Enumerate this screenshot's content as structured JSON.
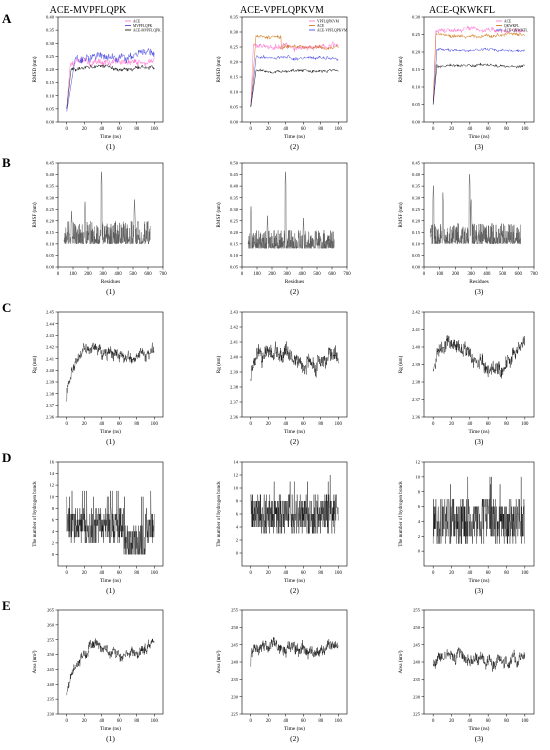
{
  "figure": {
    "panel_titles": [
      "ACE-MVPFLQPK",
      "ACE-VPFLQPKVM",
      "ACE-QKWKFL"
    ],
    "row_letters": [
      "A",
      "B",
      "C",
      "D",
      "E"
    ],
    "sub_labels": [
      "(1)",
      "(2)",
      "(3)"
    ]
  },
  "chart_data": [
    {
      "row": "A",
      "col": 1,
      "type": "line",
      "xlabel": "Time (ns)",
      "ylabel": "RMSD (nm)",
      "xlim": [
        -10,
        110
      ],
      "ylim": [
        0.0,
        0.4
      ],
      "xticks": [
        0,
        20,
        40,
        60,
        80,
        100
      ],
      "yticks": [
        0.0,
        0.05,
        0.1,
        0.15,
        0.2,
        0.25,
        0.3,
        0.35,
        0.4
      ],
      "legend_position": "top-right",
      "series": [
        {
          "name": "ACE",
          "color": "#ff66cc",
          "level": 0.225,
          "noise": 0.02,
          "start": 0.05,
          "rise": 4
        },
        {
          "name": "MVPFLQPK",
          "color": "#3333dd",
          "level": 0.25,
          "noise": 0.025,
          "start": 0.04,
          "rise": 10
        },
        {
          "name": "ACE-MVPFLQPK",
          "color": "#000000",
          "level": 0.205,
          "noise": 0.012,
          "start": 0.05,
          "rise": 5
        }
      ]
    },
    {
      "row": "A",
      "col": 2,
      "type": "line",
      "xlabel": "Time (ns)",
      "ylabel": "RMSD (nm)",
      "xlim": [
        -10,
        110
      ],
      "ylim": [
        0.0,
        0.35
      ],
      "xticks": [
        0,
        20,
        40,
        60,
        80,
        100
      ],
      "yticks": [
        0.0,
        0.05,
        0.1,
        0.15,
        0.2,
        0.25,
        0.3,
        0.35
      ],
      "legend_position": "top-right",
      "series": [
        {
          "name": "VPFLQPKVM",
          "color": "#ff66cc",
          "level": 0.255,
          "noise": 0.015,
          "start": 0.05,
          "rise": 3
        },
        {
          "name": "ACE",
          "color": "#cc6600",
          "level": 0.25,
          "noise": 0.01,
          "start": 0.05,
          "rise": 6,
          "step": [
            35,
            0.285
          ]
        },
        {
          "name": "ACE-VPFLQPKVM",
          "color": "#3333dd",
          "level": 0.215,
          "noise": 0.008,
          "start": 0.05,
          "rise": 6
        },
        {
          "name": "",
          "color": "#000000",
          "level": 0.17,
          "noise": 0.008,
          "start": 0.05,
          "rise": 6
        }
      ]
    },
    {
      "row": "A",
      "col": 3,
      "type": "line",
      "xlabel": "Time (ns)",
      "ylabel": "RMSD (nm)",
      "xlim": [
        -10,
        110
      ],
      "ylim": [
        0.0,
        0.3
      ],
      "xticks": [
        0,
        20,
        40,
        60,
        80,
        100
      ],
      "yticks": [
        0.0,
        0.05,
        0.1,
        0.15,
        0.2,
        0.25,
        0.3
      ],
      "legend_position": "top-right",
      "series": [
        {
          "name": "ACE",
          "color": "#ff66cc",
          "level": 0.262,
          "noise": 0.01,
          "start": 0.05,
          "rise": 3
        },
        {
          "name": "QKWKFL",
          "color": "#cc6600",
          "level": 0.248,
          "noise": 0.008,
          "start": 0.05,
          "rise": 3
        },
        {
          "name": "ACE-QKWKFL",
          "color": "#3333dd",
          "level": 0.205,
          "noise": 0.006,
          "start": 0.05,
          "rise": 4
        },
        {
          "name": "",
          "color": "#000000",
          "level": 0.16,
          "noise": 0.007,
          "start": 0.05,
          "rise": 4
        }
      ]
    },
    {
      "row": "B",
      "col": 1,
      "type": "line",
      "xlabel": "Residues",
      "ylabel": "RMSF (nm)",
      "xlim": [
        0,
        700
      ],
      "ylim": [
        0.0,
        0.45
      ],
      "xticks": [
        0,
        100,
        200,
        300,
        400,
        500,
        600,
        700
      ],
      "yticks": [
        0.0,
        0.05,
        0.1,
        0.15,
        0.2,
        0.25,
        0.3,
        0.35,
        0.4,
        0.45
      ],
      "rmsf": {
        "x0": 40,
        "x1": 615,
        "base": 0.1,
        "amp": 0.1,
        "peaks": [
          [
            290,
            0.42
          ],
          [
            180,
            0.29
          ],
          [
            510,
            0.3
          ],
          [
            90,
            0.25
          ]
        ]
      }
    },
    {
      "row": "B",
      "col": 2,
      "type": "line",
      "xlabel": "Residues",
      "ylabel": "RMSF (nm)",
      "xlim": [
        0,
        700
      ],
      "ylim": [
        0.05,
        0.5
      ],
      "xticks": [
        0,
        100,
        200,
        300,
        400,
        500,
        600,
        700
      ],
      "yticks": [
        0.05,
        0.1,
        0.15,
        0.2,
        0.25,
        0.3,
        0.35,
        0.4,
        0.45,
        0.5
      ],
      "rmsf": {
        "x0": 40,
        "x1": 615,
        "base": 0.13,
        "amp": 0.08,
        "peaks": [
          [
            290,
            0.47
          ],
          [
            60,
            0.32
          ],
          [
            170,
            0.28
          ],
          [
            410,
            0.27
          ]
        ]
      }
    },
    {
      "row": "B",
      "col": 3,
      "type": "line",
      "xlabel": "Residues",
      "ylabel": "RMSF (nm)",
      "xlim": [
        0,
        700
      ],
      "ylim": [
        0.0,
        0.45
      ],
      "xticks": [
        0,
        100,
        200,
        300,
        400,
        500,
        600,
        700
      ],
      "yticks": [
        0.0,
        0.05,
        0.1,
        0.15,
        0.2,
        0.25,
        0.3,
        0.35,
        0.4,
        0.45
      ],
      "rmsf": {
        "x0": 40,
        "x1": 615,
        "base": 0.1,
        "amp": 0.09,
        "peaks": [
          [
            290,
            0.41
          ],
          [
            60,
            0.36
          ],
          [
            120,
            0.33
          ],
          [
            300,
            0.3
          ]
        ]
      }
    },
    {
      "row": "C",
      "col": 1,
      "type": "line",
      "xlabel": "Time (ns)",
      "ylabel": "Rg (nm)",
      "xlim": [
        -10,
        110
      ],
      "ylim": [
        2.36,
        2.45
      ],
      "xticks": [
        0,
        20,
        40,
        60,
        80,
        100
      ],
      "yticks": [
        2.36,
        2.37,
        2.38,
        2.39,
        2.4,
        2.41,
        2.42,
        2.43,
        2.44,
        2.45
      ],
      "trace": {
        "start": 2.375,
        "level": 2.415,
        "rise": 18,
        "noise": 0.007,
        "drift": 0.005
      }
    },
    {
      "row": "C",
      "col": 2,
      "type": "line",
      "xlabel": "Time (ns)",
      "ylabel": "Rg (nm)",
      "xlim": [
        -10,
        110
      ],
      "ylim": [
        2.36,
        2.43
      ],
      "xticks": [
        0,
        20,
        40,
        60,
        80,
        100
      ],
      "yticks": [
        2.36,
        2.37,
        2.38,
        2.39,
        2.4,
        2.41,
        2.42,
        2.43
      ],
      "trace": {
        "start": 2.385,
        "level": 2.4,
        "rise": 6,
        "noise": 0.008,
        "drift": 0.004
      }
    },
    {
      "row": "C",
      "col": 3,
      "type": "line",
      "xlabel": "Time (ns)",
      "ylabel": "Rg (nm)",
      "xlim": [
        -10,
        110
      ],
      "ylim": [
        2.36,
        2.42
      ],
      "xticks": [
        0,
        20,
        40,
        60,
        80,
        100
      ],
      "yticks": [
        2.36,
        2.37,
        2.38,
        2.39,
        2.4,
        2.41,
        2.42
      ],
      "trace": {
        "start": 2.385,
        "level": 2.395,
        "rise": 4,
        "noise": 0.006,
        "drift": 0.008
      }
    },
    {
      "row": "D",
      "col": 1,
      "type": "line",
      "xlabel": "Time (ns)",
      "ylabel": "The number of hydrogen bonds",
      "xlim": [
        -10,
        110
      ],
      "ylim": [
        -2,
        16
      ],
      "xticks": [
        0,
        20,
        40,
        60,
        80,
        100
      ],
      "yticks": [
        0,
        2,
        4,
        6,
        8,
        10,
        12,
        14,
        16
      ],
      "hbonds": {
        "level": 5,
        "range": 3,
        "max": 11,
        "dip": [
          65,
          90,
          2
        ]
      }
    },
    {
      "row": "D",
      "col": 2,
      "type": "line",
      "xlabel": "Time (ns)",
      "ylabel": "The number of hydrogen bonds",
      "xlim": [
        -10,
        110
      ],
      "ylim": [
        -2,
        14
      ],
      "xticks": [
        0,
        20,
        40,
        60,
        80,
        100
      ],
      "yticks": [
        0,
        2,
        4,
        6,
        8,
        10,
        12,
        14
      ],
      "hbonds": {
        "level": 6,
        "range": 3,
        "max": 12
      }
    },
    {
      "row": "D",
      "col": 3,
      "type": "line",
      "xlabel": "Time (ns)",
      "ylabel": "The number of hydrogen bonds",
      "xlim": [
        -10,
        110
      ],
      "ylim": [
        -2,
        12
      ],
      "xticks": [
        0,
        20,
        40,
        60,
        80,
        100
      ],
      "yticks": [
        0,
        2,
        4,
        6,
        8,
        10,
        12
      ],
      "hbonds": {
        "level": 4,
        "range": 3,
        "max": 10
      }
    },
    {
      "row": "E",
      "col": 1,
      "type": "line",
      "xlabel": "Time (ns)",
      "ylabel": "Area (nm²)",
      "xlim": [
        -10,
        110
      ],
      "ylim": [
        230,
        265
      ],
      "xticks": [
        0,
        20,
        40,
        60,
        80,
        100
      ],
      "yticks": [
        230,
        235,
        240,
        245,
        250,
        255,
        260,
        265
      ],
      "trace": {
        "start": 236,
        "level": 252,
        "rise": 25,
        "noise": 2.5,
        "drift": 2
      }
    },
    {
      "row": "E",
      "col": 2,
      "type": "line",
      "xlabel": "Time (ns)",
      "ylabel": "Area (nm²)",
      "xlim": [
        -10,
        110
      ],
      "ylim": [
        225,
        255
      ],
      "xticks": [
        0,
        20,
        40,
        60,
        80,
        100
      ],
      "yticks": [
        225,
        230,
        235,
        240,
        245,
        250,
        255
      ],
      "trace": {
        "start": 240,
        "level": 244,
        "rise": 4,
        "noise": 2.5,
        "drift": 1
      }
    },
    {
      "row": "E",
      "col": 3,
      "type": "line",
      "xlabel": "Time (ns)",
      "ylabel": "Area (nm²)",
      "xlim": [
        -10,
        110
      ],
      "ylim": [
        225,
        255
      ],
      "xticks": [
        0,
        20,
        40,
        60,
        80,
        100
      ],
      "yticks": [
        225,
        230,
        235,
        240,
        245,
        250,
        255
      ],
      "trace": {
        "start": 240,
        "level": 241,
        "rise": 4,
        "noise": 2.5,
        "drift": 1.5
      }
    }
  ]
}
